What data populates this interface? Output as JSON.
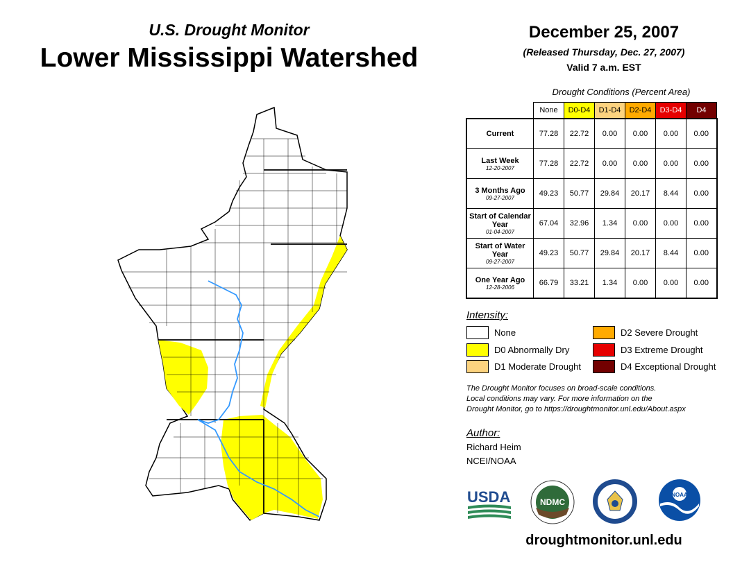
{
  "header": {
    "subtitle": "U.S. Drought Monitor",
    "title": "Lower Mississippi Watershed",
    "date": "December 25, 2007",
    "released": "(Released Thursday, Dec. 27, 2007)",
    "valid": "Valid 7 a.m. EST"
  },
  "table": {
    "caption": "Drought Conditions (Percent Area)",
    "columns": [
      "None",
      "D0-D4",
      "D1-D4",
      "D2-D4",
      "D3-D4",
      "D4"
    ],
    "column_colors": [
      "#ffffff",
      "#ffff00",
      "#fcd37f",
      "#ffaa00",
      "#e60000",
      "#730000"
    ],
    "column_text_colors": [
      "#000000",
      "#000000",
      "#000000",
      "#000000",
      "#ffffff",
      "#ffffff"
    ],
    "rows": [
      {
        "label": "Current",
        "sublabel": "",
        "values": [
          "77.28",
          "22.72",
          "0.00",
          "0.00",
          "0.00",
          "0.00"
        ]
      },
      {
        "label": "Last Week",
        "sublabel": "12-20-2007",
        "values": [
          "77.28",
          "22.72",
          "0.00",
          "0.00",
          "0.00",
          "0.00"
        ]
      },
      {
        "label": "3 Months Ago",
        "sublabel": "09-27-2007",
        "values": [
          "49.23",
          "50.77",
          "29.84",
          "20.17",
          "8.44",
          "0.00"
        ]
      },
      {
        "label": "Start of Calendar Year",
        "sublabel": "01-04-2007",
        "values": [
          "67.04",
          "32.96",
          "1.34",
          "0.00",
          "0.00",
          "0.00"
        ]
      },
      {
        "label": "Start of Water Year",
        "sublabel": "09-27-2007",
        "values": [
          "49.23",
          "50.77",
          "29.84",
          "20.17",
          "8.44",
          "0.00"
        ]
      },
      {
        "label": "One Year Ago",
        "sublabel": "12-28-2006",
        "values": [
          "66.79",
          "33.21",
          "1.34",
          "0.00",
          "0.00",
          "0.00"
        ]
      }
    ]
  },
  "legend": {
    "label": "Intensity:",
    "items": [
      {
        "label": "None",
        "color": "#ffffff"
      },
      {
        "label": "D0 Abnormally Dry",
        "color": "#ffff00"
      },
      {
        "label": "D1 Moderate Drought",
        "color": "#fcd37f"
      },
      {
        "label": "D2 Severe Drought",
        "color": "#ffaa00"
      },
      {
        "label": "D3 Extreme Drought",
        "color": "#e60000"
      },
      {
        "label": "D4 Exceptional Drought",
        "color": "#730000"
      }
    ]
  },
  "note": {
    "line1": "The Drought Monitor focuses on broad-scale conditions.",
    "line2": "Local conditions may vary. For more information on the",
    "line3": "Drought Monitor, go to https://droughtmonitor.unl.edu/About.aspx"
  },
  "author": {
    "label": "Author:",
    "name": "Richard Heim",
    "org": "NCEI/NOAA"
  },
  "logos": {
    "usda": "USDA",
    "ndmc": "NDMC",
    "noaa": "NOAA"
  },
  "footer": {
    "url": "droughtmonitor.unl.edu"
  },
  "map": {
    "drought_fill": "#ffff00",
    "river_color": "#3399ff"
  }
}
